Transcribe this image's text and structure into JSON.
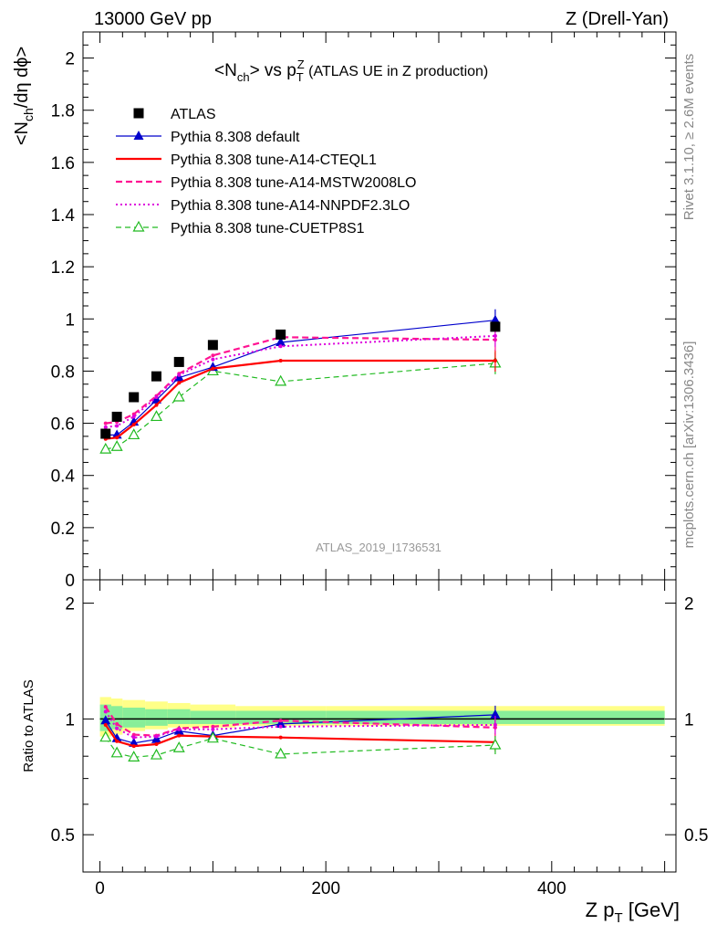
{
  "header": {
    "left": "13000 GeV pp",
    "right": "Z (Drell-Yan)",
    "rivet": "Rivet 3.1.10, ≥ 2.6M events",
    "mcplots": "mcplots.cern.ch [arXiv:1306.3436]",
    "analysis": "ATLAS_2019_I1736531"
  },
  "chart_data": [
    {
      "type": "line",
      "panel": "main",
      "title": "<Nch> vs pTZ (ATLAS UE in Z production)",
      "title_parts": {
        "a": "<N",
        "a_sub": "ch",
        "b": "> vs p",
        "b_sub": "T",
        "b_sup": "Z",
        "c": " (ATLAS UE in Z production)"
      },
      "ylabel": "<Nch/dη dϕ>",
      "ylabel_parts": {
        "a": "<N",
        "sub": "ch",
        "b": "/dη dϕ>"
      },
      "xlim": [
        -15,
        510
      ],
      "ylim": [
        0,
        2.1
      ],
      "yticks": [
        0,
        0.2,
        0.4,
        0.6,
        0.8,
        1,
        1.2,
        1.4,
        1.6,
        1.8,
        2
      ],
      "ytick_labels": [
        "0",
        "0.2",
        "0.4",
        "0.6",
        "0.8",
        "1",
        "1.2",
        "1.4",
        "1.6",
        "1.8",
        "2"
      ],
      "legend_position": "top-left",
      "x": [
        5,
        15,
        30,
        50,
        70,
        100,
        160,
        350
      ],
      "series": [
        {
          "name": "ATLAS",
          "color": "#000000",
          "style": "data",
          "marker": "square",
          "values": [
            0.56,
            0.625,
            0.7,
            0.78,
            0.835,
            0.9,
            0.94,
            0.97
          ]
        },
        {
          "name": "Pythia 8.308 default",
          "color": "#0000cc",
          "style": "solid-thin",
          "marker": "triangle-filled",
          "values": [
            0.555,
            0.555,
            0.605,
            0.69,
            0.775,
            0.815,
            0.91,
            0.995
          ]
        },
        {
          "name": "Pythia 8.308 tune-A14-CTEQL1",
          "color": "#ff0000",
          "style": "solid-thick",
          "marker": "none",
          "values": [
            0.54,
            0.545,
            0.595,
            0.67,
            0.755,
            0.81,
            0.84,
            0.84
          ]
        },
        {
          "name": "Pythia 8.308 tune-A14-MSTW2008LO",
          "color": "#ff1493",
          "style": "dashed",
          "marker": "none",
          "values": [
            0.6,
            0.605,
            0.635,
            0.705,
            0.79,
            0.86,
            0.93,
            0.92
          ]
        },
        {
          "name": "Pythia 8.308 tune-A14-NNPDF2.3LO",
          "color": "#dd00dd",
          "style": "dotted",
          "marker": "none",
          "values": [
            0.585,
            0.59,
            0.625,
            0.7,
            0.785,
            0.845,
            0.895,
            0.935
          ]
        },
        {
          "name": "Pythia 8.308 tune-CUETP8S1",
          "color": "#22bb22",
          "style": "dashed-thin",
          "marker": "triangle-open",
          "values": [
            0.5,
            0.51,
            0.555,
            0.625,
            0.7,
            0.8,
            0.76,
            0.83
          ]
        }
      ]
    },
    {
      "type": "line",
      "panel": "ratio",
      "ylabel": "Ratio to ATLAS",
      "xlabel": "Z pT [GeV]",
      "xlabel_parts": {
        "a": "Z p",
        "sub": "T",
        "b": " [GeV]"
      },
      "xlim": [
        -15,
        510
      ],
      "ylim": [
        0.4,
        2.3
      ],
      "log_y": true,
      "yticks": [
        0.5,
        1,
        2
      ],
      "ytick_labels": [
        "0.5",
        "1",
        "2"
      ],
      "xticks": [
        0,
        200,
        400
      ],
      "xtick_labels": [
        "0",
        "200",
        "400"
      ],
      "band_bins": [
        0,
        10,
        20,
        40,
        60,
        80,
        120,
        200,
        500
      ],
      "band_yellow": [
        [
          0.9,
          1.14
        ],
        [
          0.91,
          1.13
        ],
        [
          0.93,
          1.12
        ],
        [
          0.94,
          1.11
        ],
        [
          0.95,
          1.1
        ],
        [
          0.95,
          1.09
        ],
        [
          0.96,
          1.08
        ],
        [
          0.96,
          1.08
        ]
      ],
      "band_green": [
        [
          0.93,
          1.09
        ],
        [
          0.94,
          1.08
        ],
        [
          0.95,
          1.07
        ],
        [
          0.96,
          1.06
        ],
        [
          0.97,
          1.06
        ],
        [
          0.97,
          1.05
        ],
        [
          0.97,
          1.05
        ],
        [
          0.97,
          1.05
        ]
      ],
      "x": [
        5,
        15,
        30,
        50,
        70,
        100,
        160,
        350
      ],
      "series": [
        {
          "name": "Pythia 8.308 default",
          "color": "#0000cc",
          "values": [
            0.99,
            0.89,
            0.865,
            0.885,
            0.93,
            0.905,
            0.97,
            1.025
          ]
        },
        {
          "name": "Pythia 8.308 tune-A14-CTEQL1",
          "color": "#ff0000",
          "values": [
            0.965,
            0.875,
            0.85,
            0.86,
            0.905,
            0.9,
            0.895,
            0.87
          ]
        },
        {
          "name": "Pythia 8.308 tune-A14-MSTW2008LO",
          "color": "#ff1493",
          "values": [
            1.075,
            0.97,
            0.91,
            0.905,
            0.945,
            0.955,
            0.99,
            0.95
          ]
        },
        {
          "name": "Pythia 8.308 tune-A14-NNPDF2.3LO",
          "color": "#dd00dd",
          "values": [
            1.045,
            0.945,
            0.895,
            0.9,
            0.94,
            0.94,
            0.955,
            0.965
          ]
        },
        {
          "name": "Pythia 8.308 tune-CUETP8S1",
          "color": "#22bb22",
          "values": [
            0.895,
            0.815,
            0.795,
            0.805,
            0.84,
            0.89,
            0.81,
            0.855
          ]
        }
      ]
    }
  ]
}
